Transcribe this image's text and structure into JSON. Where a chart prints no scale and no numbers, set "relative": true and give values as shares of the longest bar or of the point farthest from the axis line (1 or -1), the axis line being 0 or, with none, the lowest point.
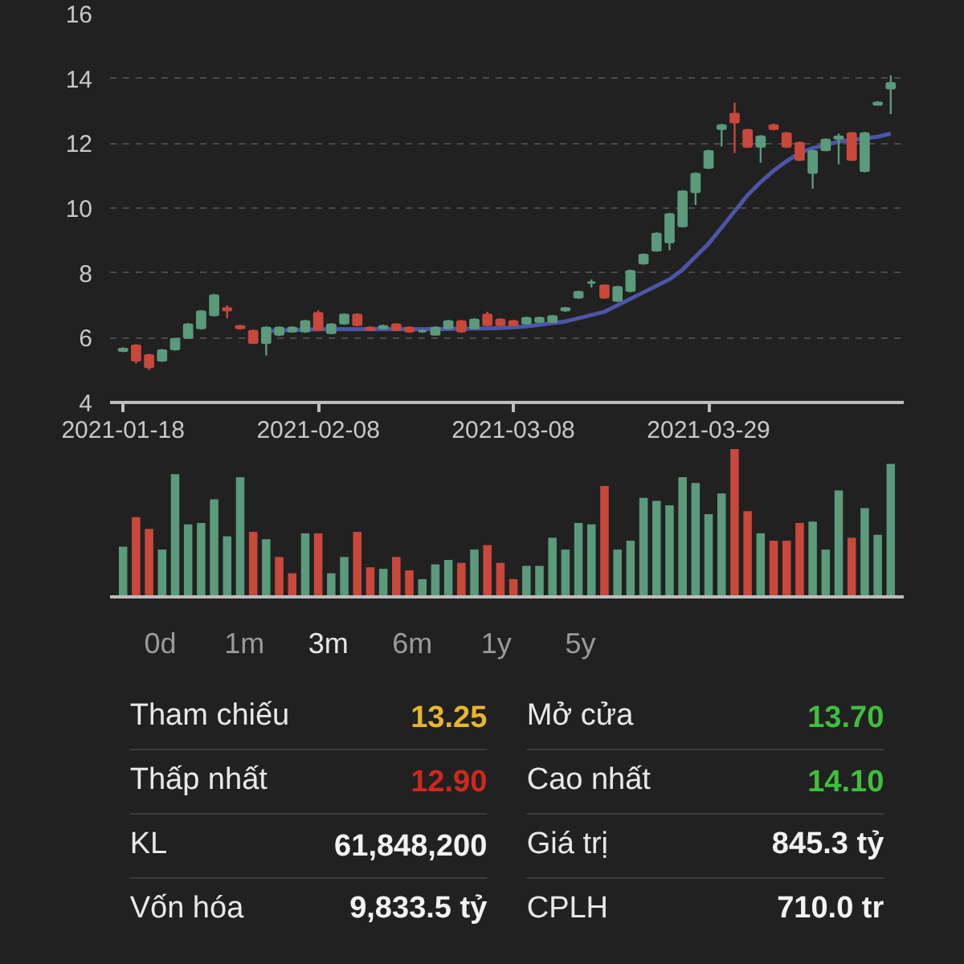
{
  "chart_data": [
    {
      "type": "candlestick",
      "categories": [
        "2021-01-18",
        null,
        null,
        null,
        null,
        null,
        null,
        null,
        null,
        null,
        null,
        null,
        null,
        null,
        null,
        "2021-02-08",
        null,
        null,
        null,
        null,
        null,
        null,
        null,
        null,
        null,
        null,
        null,
        null,
        null,
        null,
        "2021-03-08",
        null,
        null,
        null,
        null,
        null,
        null,
        null,
        null,
        null,
        null,
        null,
        null,
        null,
        null,
        "2021-03-29",
        null,
        null,
        null,
        null,
        null,
        null,
        null,
        null,
        null,
        null,
        null,
        null,
        null,
        null
      ],
      "ohlc": [
        [
          5.6,
          5.7,
          5.55,
          5.65
        ],
        [
          5.75,
          5.8,
          5.2,
          5.3
        ],
        [
          5.45,
          5.5,
          5.0,
          5.1
        ],
        [
          5.3,
          5.65,
          5.25,
          5.6
        ],
        [
          5.65,
          5.95,
          5.6,
          5.95
        ],
        [
          6.0,
          6.45,
          6.0,
          6.4
        ],
        [
          6.3,
          6.85,
          6.25,
          6.8
        ],
        [
          6.7,
          7.35,
          6.65,
          7.3
        ],
        [
          6.9,
          7.0,
          6.6,
          6.85
        ],
        [
          6.35,
          6.4,
          6.25,
          6.3
        ],
        [
          6.2,
          6.25,
          5.8,
          5.85
        ],
        [
          5.85,
          6.35,
          5.45,
          6.3
        ],
        [
          6.1,
          6.35,
          6.05,
          6.3
        ],
        [
          6.2,
          6.35,
          6.15,
          6.3
        ],
        [
          6.2,
          6.55,
          6.15,
          6.5
        ],
        [
          6.75,
          6.85,
          6.2,
          6.25
        ],
        [
          6.15,
          6.45,
          6.1,
          6.4
        ],
        [
          6.45,
          6.75,
          6.4,
          6.7
        ],
        [
          6.7,
          6.75,
          6.35,
          6.4
        ],
        [
          6.3,
          6.35,
          6.2,
          6.25
        ],
        [
          6.3,
          6.4,
          6.25,
          6.35
        ],
        [
          6.4,
          6.45,
          6.2,
          6.25
        ],
        [
          6.3,
          6.35,
          6.15,
          6.2
        ],
        [
          6.2,
          6.25,
          6.15,
          6.2
        ],
        [
          6.1,
          6.35,
          6.1,
          6.3
        ],
        [
          6.3,
          6.55,
          6.3,
          6.5
        ],
        [
          6.5,
          6.55,
          6.15,
          6.2
        ],
        [
          6.3,
          6.6,
          6.3,
          6.55
        ],
        [
          6.7,
          6.8,
          6.35,
          6.4
        ],
        [
          6.55,
          6.6,
          6.35,
          6.4
        ],
        [
          6.5,
          6.55,
          6.35,
          6.4
        ],
        [
          6.45,
          6.65,
          6.4,
          6.6
        ],
        [
          6.5,
          6.65,
          6.45,
          6.6
        ],
        [
          6.5,
          6.7,
          6.45,
          6.65
        ],
        [
          6.85,
          6.95,
          6.8,
          6.9
        ],
        [
          7.25,
          7.45,
          7.2,
          7.4
        ],
        [
          7.7,
          7.8,
          7.55,
          7.7
        ],
        [
          7.6,
          7.65,
          7.2,
          7.25
        ],
        [
          7.15,
          7.6,
          7.1,
          7.55
        ],
        [
          7.45,
          8.1,
          7.4,
          8.05
        ],
        [
          8.3,
          8.6,
          8.25,
          8.55
        ],
        [
          8.7,
          9.25,
          8.65,
          9.2
        ],
        [
          8.95,
          9.85,
          8.7,
          9.8
        ],
        [
          9.45,
          10.55,
          9.4,
          10.5
        ],
        [
          10.5,
          11.1,
          10.1,
          11.05
        ],
        [
          11.25,
          11.8,
          11.2,
          11.75
        ],
        [
          12.45,
          12.6,
          11.9,
          12.55
        ],
        [
          12.9,
          13.25,
          11.7,
          12.65
        ],
        [
          12.4,
          12.45,
          11.85,
          11.9
        ],
        [
          11.9,
          12.25,
          11.4,
          12.2
        ],
        [
          12.55,
          12.6,
          12.4,
          12.45
        ],
        [
          12.3,
          12.35,
          11.85,
          11.9
        ],
        [
          12.0,
          12.05,
          11.45,
          11.5
        ],
        [
          11.1,
          11.8,
          10.6,
          11.75
        ],
        [
          11.8,
          12.15,
          11.75,
          12.1
        ],
        [
          12.15,
          12.3,
          11.35,
          12.2
        ],
        [
          12.3,
          12.35,
          11.45,
          11.5
        ],
        [
          11.15,
          12.35,
          11.1,
          12.3
        ],
        [
          13.2,
          13.3,
          13.2,
          13.25
        ],
        [
          13.7,
          14.1,
          12.9,
          13.85
        ]
      ],
      "colors": [
        "#5b9a7b",
        "#c9483c",
        "#c9483c",
        "#5b9a7b",
        "#5b9a7b",
        "#5b9a7b",
        "#5b9a7b",
        "#5b9a7b",
        "#c9483c",
        "#c9483c",
        "#c9483c",
        "#5b9a7b",
        "#5b9a7b",
        "#5b9a7b",
        "#5b9a7b",
        "#c9483c",
        "#5b9a7b",
        "#5b9a7b",
        "#c9483c",
        "#c9483c",
        "#5b9a7b",
        "#c9483c",
        "#c9483c",
        "#5b9a7b",
        "#5b9a7b",
        "#5b9a7b",
        "#c9483c",
        "#5b9a7b",
        "#c9483c",
        "#c9483c",
        "#c9483c",
        "#5b9a7b",
        "#5b9a7b",
        "#5b9a7b",
        "#5b9a7b",
        "#5b9a7b",
        "#5b9a7b",
        "#c9483c",
        "#5b9a7b",
        "#5b9a7b",
        "#5b9a7b",
        "#5b9a7b",
        "#5b9a7b",
        "#5b9a7b",
        "#5b9a7b",
        "#5b9a7b",
        "#5b9a7b",
        "#c9483c",
        "#c9483c",
        "#5b9a7b",
        "#c9483c",
        "#c9483c",
        "#c9483c",
        "#5b9a7b",
        "#5b9a7b",
        "#5b9a7b",
        "#c9483c",
        "#5b9a7b",
        "#5b9a7b",
        "#5b9a7b"
      ],
      "series": [
        {
          "type": "line",
          "color": "#4b56a8",
          "values": [
            null,
            null,
            null,
            null,
            null,
            null,
            null,
            null,
            null,
            null,
            null,
            6.2,
            6.22,
            6.24,
            6.25,
            6.26,
            6.26,
            6.26,
            6.26,
            6.26,
            6.26,
            6.26,
            6.26,
            6.26,
            6.27,
            6.27,
            6.28,
            6.28,
            6.29,
            6.3,
            6.32,
            6.35,
            6.4,
            6.45,
            6.5,
            6.6,
            6.7,
            6.8,
            7.0,
            7.2,
            7.4,
            7.6,
            7.8,
            8.1,
            8.5,
            8.9,
            9.4,
            9.9,
            10.4,
            10.8,
            11.15,
            11.45,
            11.7,
            11.85,
            11.95,
            12.05,
            12.1,
            12.15,
            12.2,
            12.3
          ]
        }
      ],
      "ylim": [
        4,
        16
      ],
      "yticks": [
        4,
        6,
        8,
        10,
        12,
        14,
        16
      ],
      "grid": "y"
    },
    {
      "type": "bar",
      "relative": true,
      "categories": [
        null,
        null,
        null,
        null,
        null,
        null,
        null,
        null,
        null,
        null,
        null,
        null,
        null,
        null,
        null,
        null,
        null,
        null,
        null,
        null,
        null,
        null,
        null,
        null,
        null,
        null,
        null,
        null,
        null,
        null,
        null,
        null,
        null,
        null,
        null,
        null,
        null,
        null,
        null,
        null,
        null,
        null,
        null,
        null,
        null,
        null,
        null,
        null,
        null,
        null,
        null,
        null,
        null,
        null,
        null,
        null,
        null,
        null,
        null,
        null
      ],
      "values": [
        0.34,
        0.54,
        0.46,
        0.32,
        0.83,
        0.49,
        0.5,
        0.66,
        0.41,
        0.81,
        0.44,
        0.39,
        0.27,
        0.16,
        0.43,
        0.43,
        0.16,
        0.27,
        0.44,
        0.2,
        0.19,
        0.27,
        0.18,
        0.12,
        0.22,
        0.25,
        0.23,
        0.32,
        0.35,
        0.23,
        0.12,
        0.21,
        0.21,
        0.4,
        0.32,
        0.5,
        0.49,
        0.75,
        0.32,
        0.38,
        0.67,
        0.65,
        0.62,
        0.81,
        0.77,
        0.56,
        0.7,
        1,
        0.58,
        0.43,
        0.38,
        0.38,
        0.5,
        0.51,
        0.32,
        0.72,
        0.4,
        0.6,
        0.42,
        0.9
      ],
      "colors": [
        "#5b9a7b",
        "#c9483c",
        "#c9483c",
        "#5b9a7b",
        "#5b9a7b",
        "#5b9a7b",
        "#5b9a7b",
        "#5b9a7b",
        "#5b9a7b",
        "#5b9a7b",
        "#c9483c",
        "#5b9a7b",
        "#c9483c",
        "#c9483c",
        "#5b9a7b",
        "#c9483c",
        "#5b9a7b",
        "#5b9a7b",
        "#c9483c",
        "#c9483c",
        "#5b9a7b",
        "#c9483c",
        "#c9483c",
        "#5b9a7b",
        "#5b9a7b",
        "#5b9a7b",
        "#c9483c",
        "#5b9a7b",
        "#c9483c",
        "#c9483c",
        "#c9483c",
        "#5b9a7b",
        "#5b9a7b",
        "#5b9a7b",
        "#5b9a7b",
        "#5b9a7b",
        "#5b9a7b",
        "#c9483c",
        "#5b9a7b",
        "#5b9a7b",
        "#5b9a7b",
        "#5b9a7b",
        "#5b9a7b",
        "#5b9a7b",
        "#5b9a7b",
        "#5b9a7b",
        "#5b9a7b",
        "#c9483c",
        "#c9483c",
        "#5b9a7b",
        "#c9483c",
        "#c9483c",
        "#c9483c",
        "#5b9a7b",
        "#5b9a7b",
        "#5b9a7b",
        "#c9483c",
        "#5b9a7b",
        "#5b9a7b",
        "#5b9a7b"
      ]
    },
    {
      "type": "other",
      "annotations": [
        "0d",
        "1m",
        "3m",
        "6m",
        "1y",
        "5y"
      ],
      "colors": [
        "#9a9a9a",
        "#9a9a9a",
        "#e6e6e6",
        "#9a9a9a",
        "#9a9a9a",
        "#9a9a9a"
      ]
    },
    {
      "type": "other",
      "annotations": [
        "Tham chiếu",
        "13.25",
        "Mở cửa",
        "13.70",
        "Thấp nhất",
        "12.90",
        "Cao nhất",
        "14.10",
        "KL",
        "61,848,200",
        "Giá trị",
        "845.3 tỷ",
        "Vốn hóa",
        "9,833.5 tỷ",
        "CPLH",
        "710.0 tr"
      ],
      "colors": [
        "#e8e8e8",
        "#e8b62c",
        "#e8e8e8",
        "#3fbf3f",
        "#e8e8e8",
        "#d0281e",
        "#e8e8e8",
        "#3fbf3f",
        "#e8e8e8",
        "#f2f2f2",
        "#e8e8e8",
        "#f2f2f2",
        "#e8e8e8",
        "#f2f2f2",
        "#e8e8e8",
        "#f2f2f2"
      ]
    }
  ]
}
